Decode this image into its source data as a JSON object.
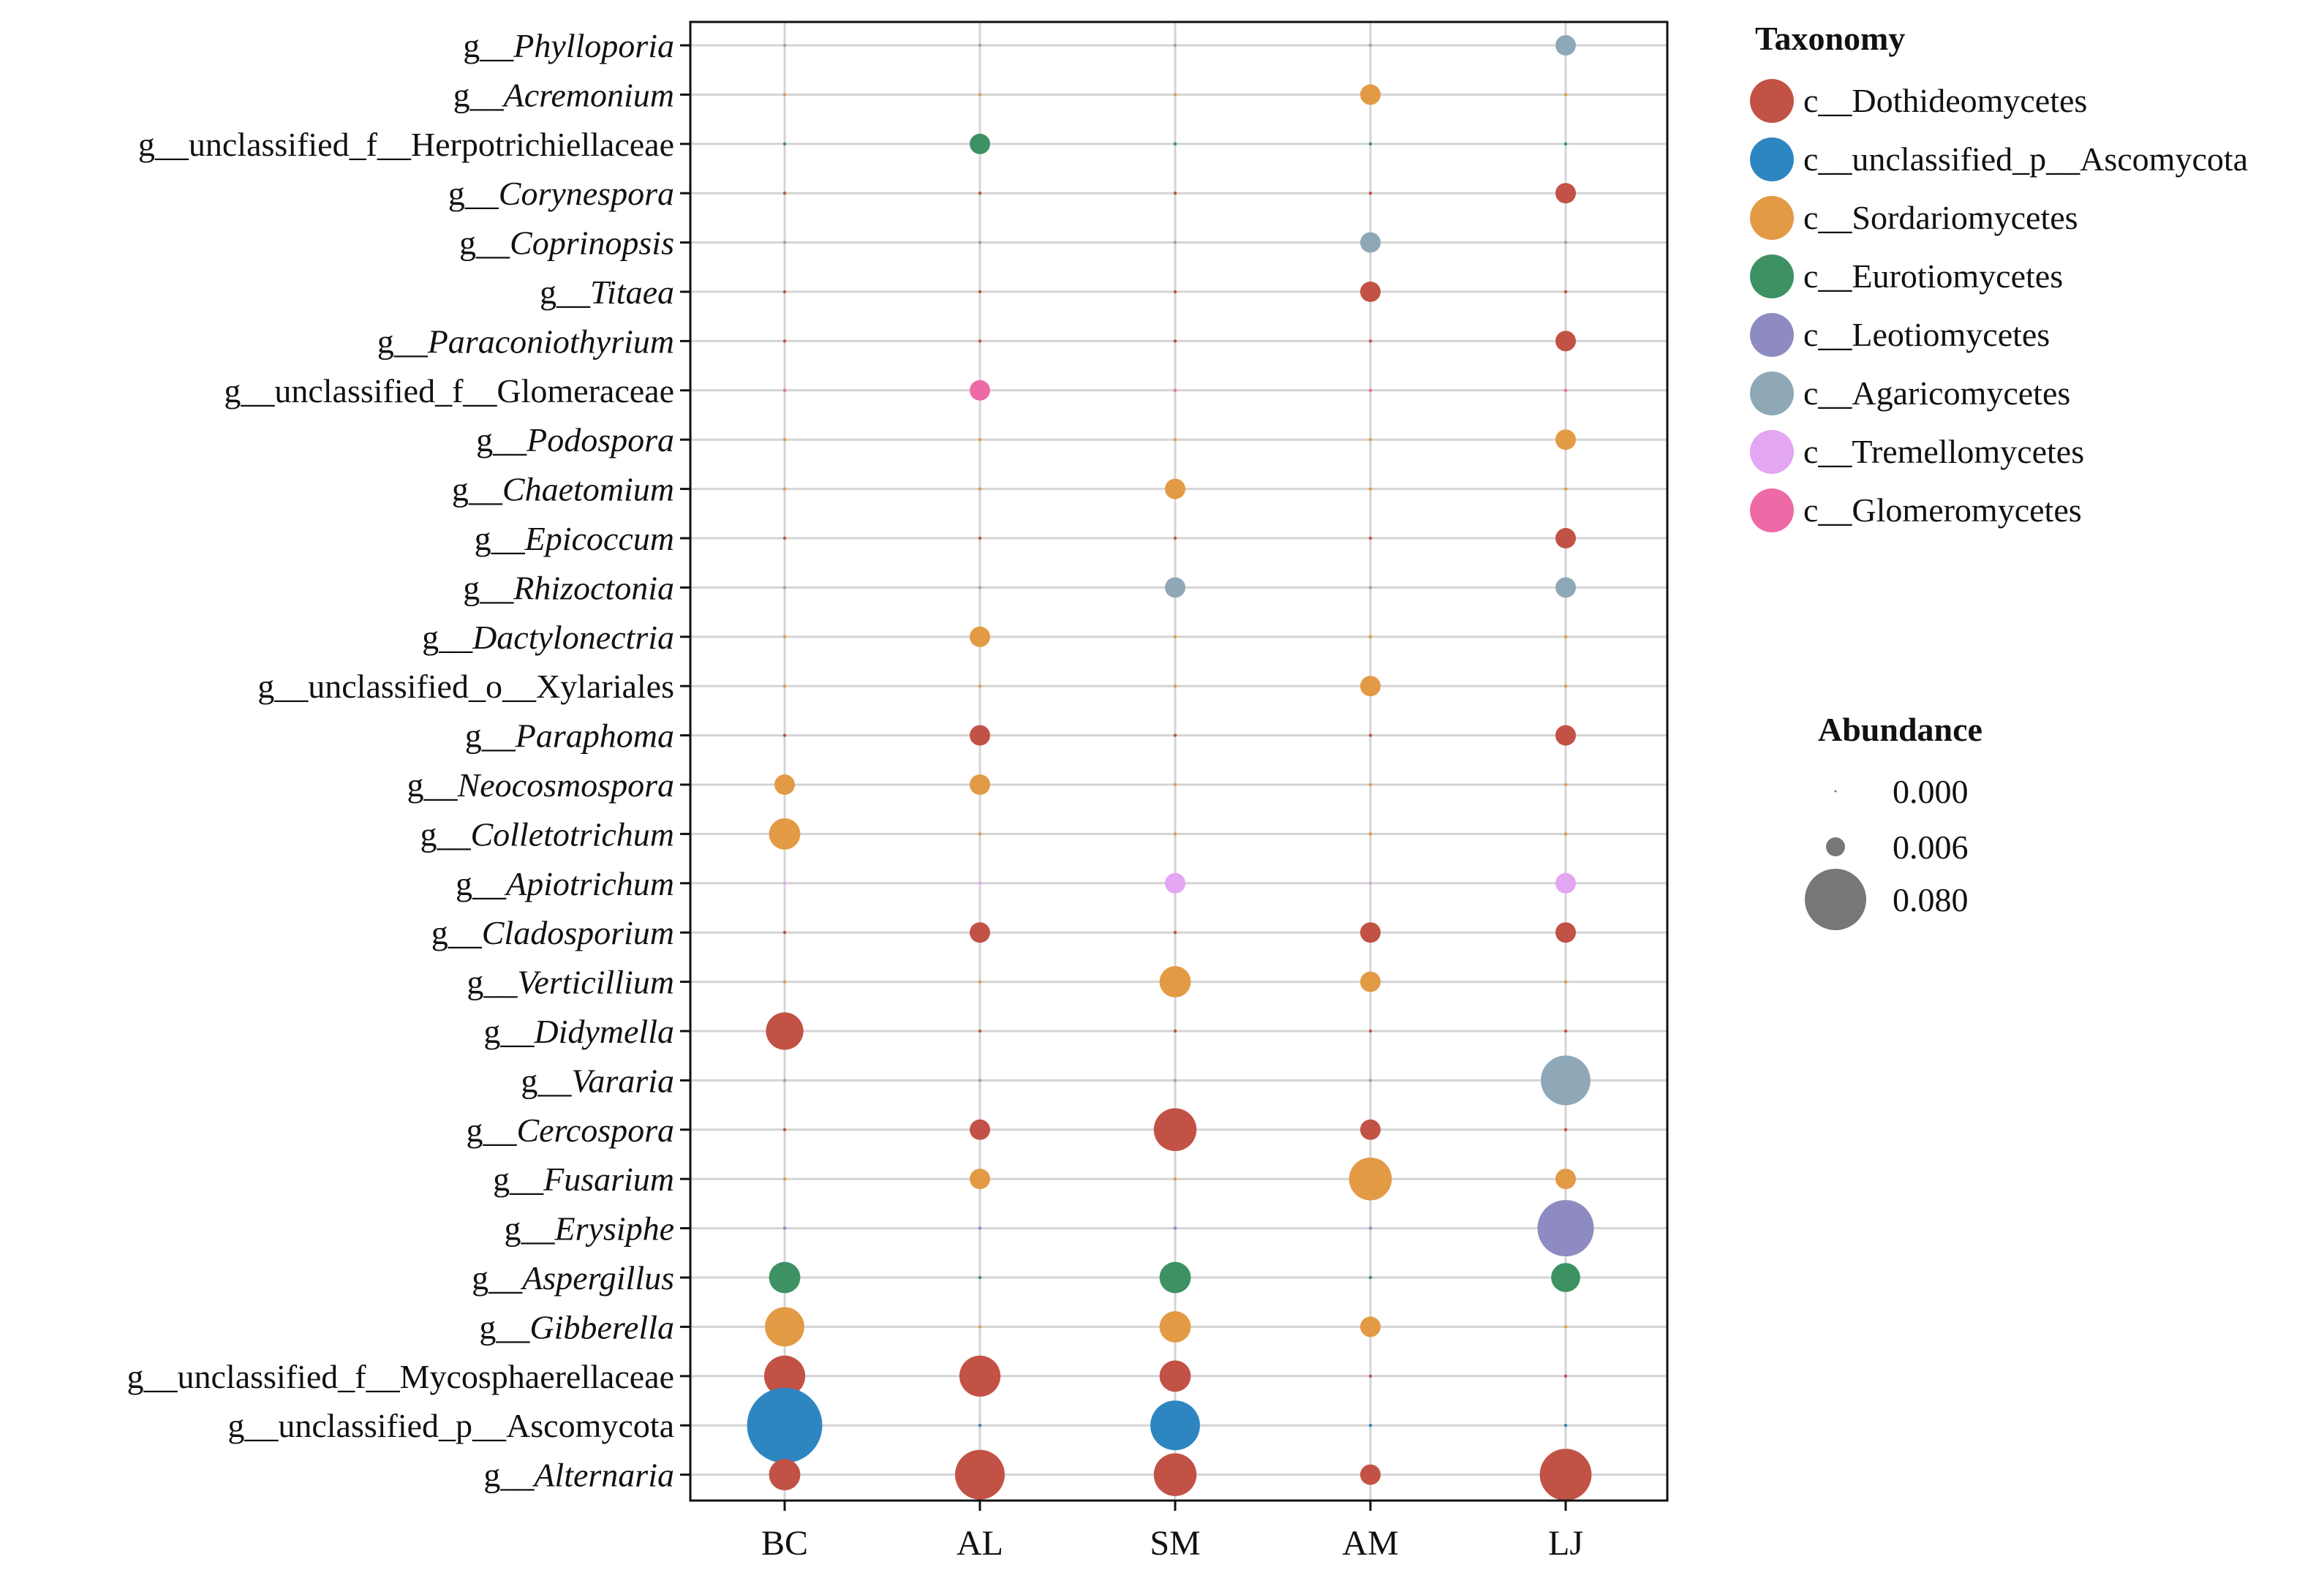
{
  "chart_data": {
    "type": "bubble",
    "title": "",
    "xlabel": "",
    "ylabel": "",
    "x_categories": [
      "BC",
      "AL",
      "SM",
      "AM",
      "LJ"
    ],
    "taxa": [
      {
        "prefix": "g__",
        "name": "Phylloporia",
        "italic": true,
        "class": "c__Agaricomycetes",
        "values": [
          0.0001,
          0.0001,
          0.0001,
          0.0001,
          0.006
        ]
      },
      {
        "prefix": "g__",
        "name": "Acremonium",
        "italic": true,
        "class": "c__Sordariomycetes",
        "values": [
          0.0001,
          0.0001,
          0.0001,
          0.006,
          0.0001
        ]
      },
      {
        "prefix": "g__",
        "name": "unclassified_f__Herpotrichiellaceae",
        "italic": false,
        "class": "c__Eurotiomycetes",
        "values": [
          0.0001,
          0.006,
          0.0001,
          0.0001,
          0.0001
        ]
      },
      {
        "prefix": "g__",
        "name": "Corynespora",
        "italic": true,
        "class": "c__Dothideomycetes",
        "values": [
          0.0001,
          0.0001,
          0.0001,
          0.0001,
          0.006
        ]
      },
      {
        "prefix": "g__",
        "name": "Coprinopsis",
        "italic": true,
        "class": "c__Agaricomycetes",
        "values": [
          0.0001,
          0.0001,
          0.0001,
          0.006,
          0.0001
        ]
      },
      {
        "prefix": "g__",
        "name": "Titaea",
        "italic": true,
        "class": "c__Dothideomycetes",
        "values": [
          0.0001,
          0.0001,
          0.0001,
          0.006,
          0.0001
        ]
      },
      {
        "prefix": "g__",
        "name": "Paraconiothyrium",
        "italic": true,
        "class": "c__Dothideomycetes",
        "values": [
          0.0001,
          0.0001,
          0.0001,
          0.0001,
          0.006
        ]
      },
      {
        "prefix": "g__",
        "name": "unclassified_f__Glomeraceae",
        "italic": false,
        "class": "c__Glomeromycetes",
        "values": [
          0.0001,
          0.006,
          0.0001,
          0.0001,
          0.0001
        ]
      },
      {
        "prefix": "g__",
        "name": "Podospora",
        "italic": true,
        "class": "c__Sordariomycetes",
        "values": [
          0.0001,
          0.0001,
          0.0001,
          0.0001,
          0.006
        ]
      },
      {
        "prefix": "g__",
        "name": "Chaetomium",
        "italic": true,
        "class": "c__Sordariomycetes",
        "values": [
          0.0001,
          0.0001,
          0.006,
          0.0001,
          0.0001
        ]
      },
      {
        "prefix": "g__",
        "name": "Epicoccum",
        "italic": true,
        "class": "c__Dothideomycetes",
        "values": [
          0.0001,
          0.0001,
          0.0001,
          0.0001,
          0.006
        ]
      },
      {
        "prefix": "g__",
        "name": "Rhizoctonia",
        "italic": true,
        "class": "c__Agaricomycetes",
        "values": [
          0.0001,
          0.0001,
          0.006,
          0.0001,
          0.006
        ]
      },
      {
        "prefix": "g__",
        "name": "Dactylonectria",
        "italic": true,
        "class": "c__Sordariomycetes",
        "values": [
          0.0001,
          0.006,
          0.0001,
          0.0001,
          0.0001
        ]
      },
      {
        "prefix": "g__",
        "name": "unclassified_o__Xylariales",
        "italic": false,
        "class": "c__Sordariomycetes",
        "values": [
          0.0001,
          0.0001,
          0.0001,
          0.006,
          0.0001
        ]
      },
      {
        "prefix": "g__",
        "name": "Paraphoma",
        "italic": true,
        "class": "c__Dothideomycetes",
        "values": [
          0.0001,
          0.006,
          0.0001,
          0.0001,
          0.006
        ]
      },
      {
        "prefix": "g__",
        "name": "Neocosmospora",
        "italic": true,
        "class": "c__Sordariomycetes",
        "values": [
          0.006,
          0.006,
          0.0001,
          0.0001,
          0.0001
        ]
      },
      {
        "prefix": "g__",
        "name": "Colletotrichum",
        "italic": true,
        "class": "c__Sordariomycetes",
        "values": [
          0.014,
          0.0001,
          0.0001,
          0.0001,
          0.0001
        ]
      },
      {
        "prefix": "g__",
        "name": "Apiotrichum",
        "italic": true,
        "class": "c__Tremellomycetes",
        "values": [
          0.0001,
          0.0001,
          0.006,
          0.0001,
          0.006
        ]
      },
      {
        "prefix": "g__",
        "name": "Cladosporium",
        "italic": true,
        "class": "c__Dothideomycetes",
        "values": [
          0.0001,
          0.006,
          0.0001,
          0.006,
          0.006
        ]
      },
      {
        "prefix": "g__",
        "name": "Verticillium",
        "italic": true,
        "class": "c__Sordariomycetes",
        "values": [
          0.0001,
          0.0001,
          0.014,
          0.006,
          0.0001
        ]
      },
      {
        "prefix": "g__",
        "name": "Didymella",
        "italic": true,
        "class": "c__Dothideomycetes",
        "values": [
          0.02,
          0.0001,
          0.0001,
          0.0001,
          0.0001
        ]
      },
      {
        "prefix": "g__",
        "name": "Vararia",
        "italic": true,
        "class": "c__Agaricomycetes",
        "values": [
          0.0001,
          0.0001,
          0.0001,
          0.0001,
          0.035
        ]
      },
      {
        "prefix": "g__",
        "name": "Cercospora",
        "italic": true,
        "class": "c__Dothideomycetes",
        "values": [
          0.0001,
          0.006,
          0.026,
          0.006,
          0.0001
        ]
      },
      {
        "prefix": "g__",
        "name": "Fusarium",
        "italic": true,
        "class": "c__Sordariomycetes",
        "values": [
          0.0001,
          0.006,
          0.0001,
          0.026,
          0.006
        ]
      },
      {
        "prefix": "g__",
        "name": "Erysiphe",
        "italic": true,
        "class": "c__Leotiomycetes",
        "values": [
          0.0001,
          0.0001,
          0.0001,
          0.0001,
          0.045
        ]
      },
      {
        "prefix": "g__",
        "name": "Aspergillus",
        "italic": true,
        "class": "c__Eurotiomycetes",
        "values": [
          0.014,
          0.0001,
          0.014,
          0.0001,
          0.012
        ]
      },
      {
        "prefix": "g__",
        "name": "Gibberella",
        "italic": true,
        "class": "c__Sordariomycetes",
        "values": [
          0.022,
          0.0001,
          0.014,
          0.006,
          0.0001
        ]
      },
      {
        "prefix": "g__",
        "name": "unclassified_f__Mycosphaerellaceae",
        "italic": false,
        "class": "c__Dothideomycetes",
        "values": [
          0.024,
          0.024,
          0.014,
          0.0001,
          0.0001
        ]
      },
      {
        "prefix": "g__",
        "name": "unclassified_p__Ascomycota",
        "italic": false,
        "class": "c__unclassified_p__Ascomycota",
        "values": [
          0.08,
          0.0001,
          0.035,
          0.0001,
          0.0001
        ]
      },
      {
        "prefix": "g__",
        "name": "Alternaria",
        "italic": true,
        "class": "c__Dothideomycetes",
        "values": [
          0.014,
          0.035,
          0.026,
          0.006,
          0.038
        ]
      }
    ],
    "legend_taxonomy": {
      "title": "Taxonomy",
      "items": [
        {
          "label": "c__Dothideomycetes",
          "color": "#C25245"
        },
        {
          "label": "c__unclassified_p__Ascomycota",
          "color": "#2E86C1"
        },
        {
          "label": "c__Sordariomycetes",
          "color": "#E39A45"
        },
        {
          "label": "c__Eurotiomycetes",
          "color": "#3D9163"
        },
        {
          "label": "c__Leotiomycetes",
          "color": "#8D8BC1"
        },
        {
          "label": "c__Agaricomycetes",
          "color": "#8FA8B8"
        },
        {
          "label": "c__Tremellomycetes",
          "color": "#E3A6F2"
        },
        {
          "label": "c__Glomeromycetes",
          "color": "#EE6AA7"
        }
      ]
    },
    "legend_abundance": {
      "title": "Abundance",
      "items": [
        {
          "label": "0.000",
          "value": 0.0
        },
        {
          "label": "0.006",
          "value": 0.006
        },
        {
          "label": "0.080",
          "value": 0.08
        }
      ]
    },
    "grid": true,
    "legend_position": "right"
  }
}
